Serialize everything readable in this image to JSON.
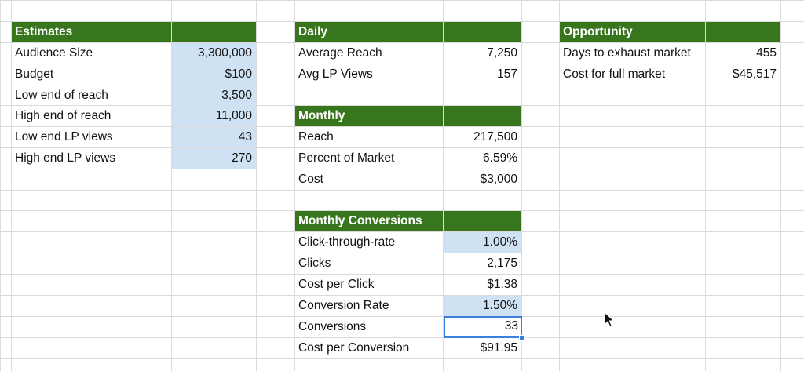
{
  "estimates": {
    "header": "Estimates",
    "rows": [
      {
        "label": "Audience Size",
        "value": "3,300,000"
      },
      {
        "label": "Budget",
        "value": "$100"
      },
      {
        "label": "Low end of reach",
        "value": "3,500"
      },
      {
        "label": "High end of reach",
        "value": "11,000"
      },
      {
        "label": "Low end LP views",
        "value": "43"
      },
      {
        "label": "High end LP views",
        "value": "270"
      }
    ]
  },
  "daily": {
    "header": "Daily",
    "rows": [
      {
        "label": "Average Reach",
        "value": "7,250"
      },
      {
        "label": "Avg LP Views",
        "value": "157"
      }
    ]
  },
  "monthly": {
    "header": "Monthly",
    "rows": [
      {
        "label": "Reach",
        "value": "217,500"
      },
      {
        "label": "Percent of Market",
        "value": "6.59%"
      },
      {
        "label": "Cost",
        "value": "$3,000"
      }
    ]
  },
  "conversions": {
    "header": "Monthly Conversions",
    "rows": [
      {
        "label": "Click-through-rate",
        "value": "1.00%"
      },
      {
        "label": "Clicks",
        "value": "2,175"
      },
      {
        "label": "Cost per Click",
        "value": "$1.38"
      },
      {
        "label": "Conversion Rate",
        "value": "1.50%"
      },
      {
        "label": "Conversions",
        "value": "33"
      },
      {
        "label": "Cost per Conversion",
        "value": "$91.95"
      }
    ]
  },
  "opportunity": {
    "header": "Opportunity",
    "rows": [
      {
        "label": "Days to exhaust market",
        "value": "455"
      },
      {
        "label": "Cost for full market",
        "value": "$45,517"
      }
    ]
  },
  "colors": {
    "header_bg": "#38761d",
    "input_bg": "#cfe2f3",
    "selection": "#3d7fe0",
    "gridline": "#dadada"
  },
  "icons": {
    "pointer": "mouse-pointer-icon"
  }
}
